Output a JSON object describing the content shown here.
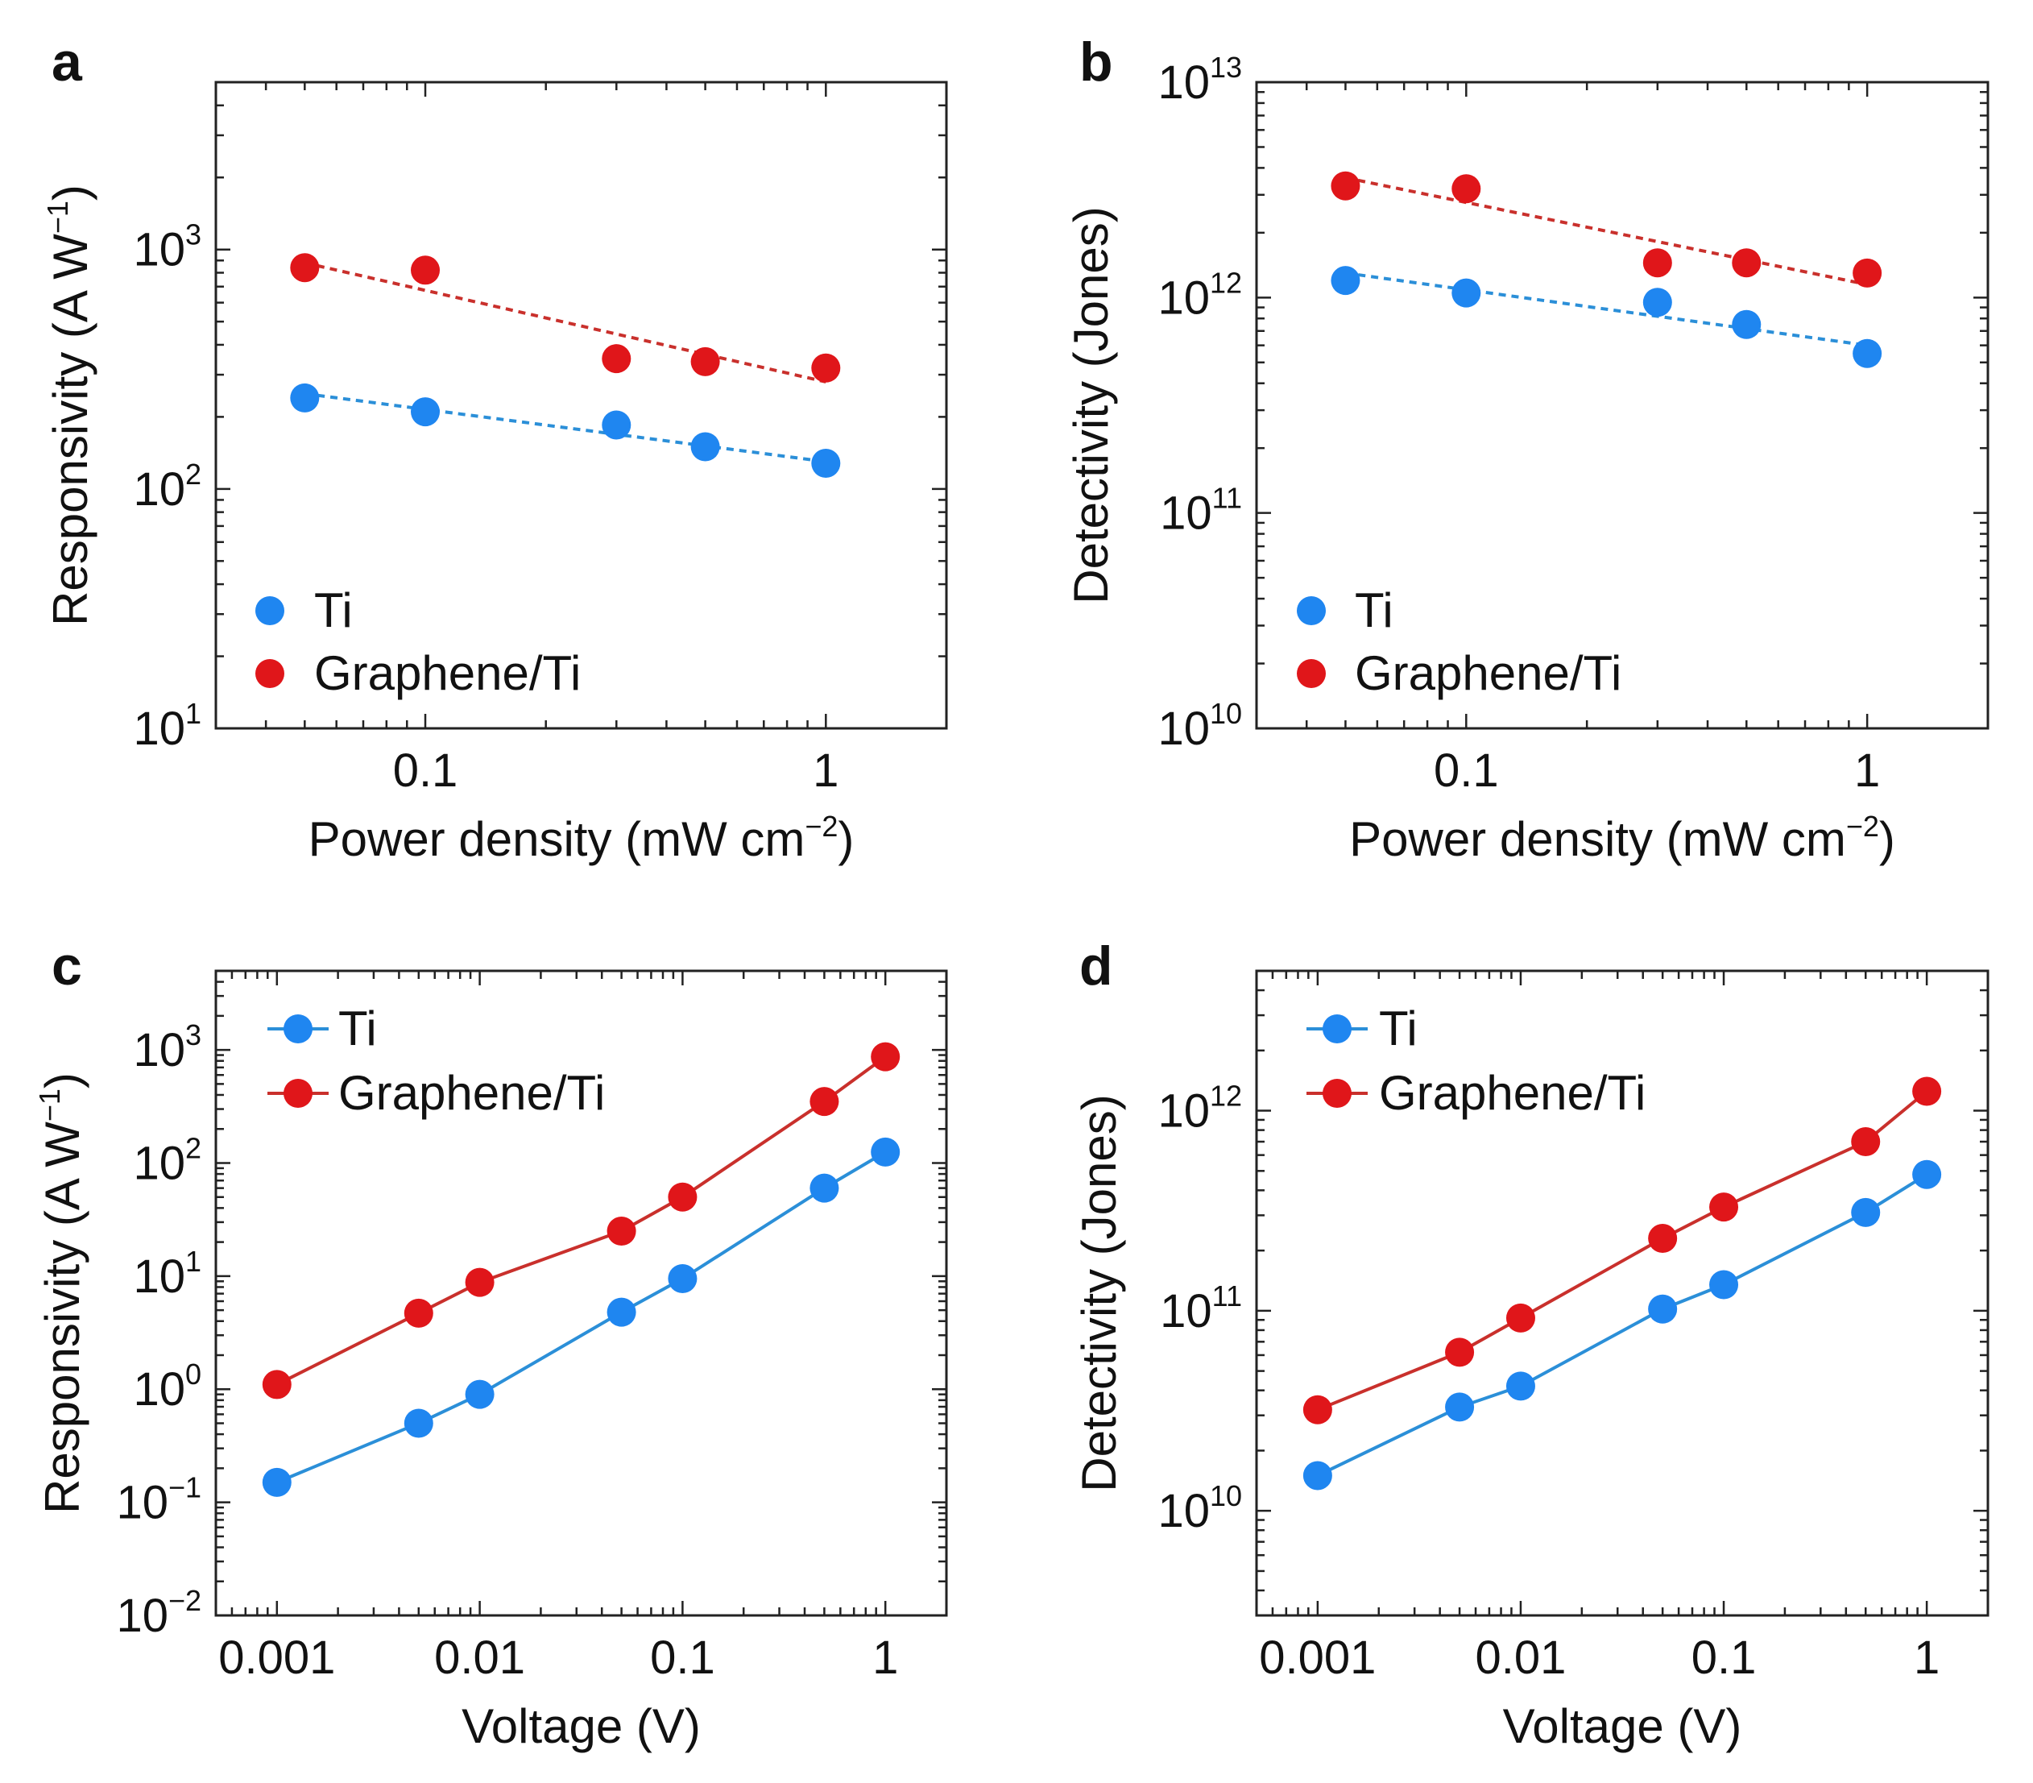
{
  "colors": {
    "ti_marker": "#1f86f0",
    "ti_line": "#2b8fd8",
    "graphene_marker": "#e0161a",
    "graphene_line": "#c9302c",
    "axis": "#222222"
  },
  "chart_data": [
    {
      "id": "a",
      "panel_label": "a",
      "type": "scatter",
      "xscale": "log",
      "yscale": "log",
      "xlim": [
        0.03,
        2
      ],
      "ylim": [
        10,
        5000
      ],
      "xticks": [
        {
          "value": 0.1,
          "label": "0.1"
        },
        {
          "value": 1,
          "label": "1"
        }
      ],
      "yticks": [
        {
          "value": 10,
          "base": "10",
          "exp": "1"
        },
        {
          "value": 100,
          "base": "10",
          "exp": "2"
        },
        {
          "value": 1000,
          "base": "10",
          "exp": "3"
        }
      ],
      "xlabel": {
        "main": "Power density (mW cm",
        "sup": "−2",
        "tail": ")"
      },
      "ylabel": {
        "main": "Responsivity (A W",
        "sup": "−1",
        "tail": ")"
      },
      "legend_position": "bottom-left",
      "legend_style": "marker",
      "connect_points": false,
      "series": [
        {
          "name": "Ti",
          "color_key": "ti",
          "x": [
            0.05,
            0.1,
            0.3,
            0.5,
            1
          ],
          "y": [
            240,
            210,
            185,
            150,
            128
          ],
          "fit": {
            "x": [
              0.05,
              1
            ],
            "y": [
              250,
              130
            ]
          }
        },
        {
          "name": "Graphene/Ti",
          "color_key": "graphene",
          "x": [
            0.05,
            0.1,
            0.3,
            0.5,
            1
          ],
          "y": [
            840,
            820,
            350,
            340,
            320
          ],
          "fit": {
            "x": [
              0.05,
              1
            ],
            "y": [
              880,
              280
            ]
          }
        }
      ]
    },
    {
      "id": "b",
      "panel_label": "b",
      "type": "scatter",
      "xscale": "log",
      "yscale": "log",
      "xlim": [
        0.03,
        2
      ],
      "ylim": [
        10000000000.0,
        10000000000000.0
      ],
      "xticks": [
        {
          "value": 0.1,
          "label": "0.1"
        },
        {
          "value": 1,
          "label": "1"
        }
      ],
      "yticks": [
        {
          "value": 10000000000.0,
          "base": "10",
          "exp": "10"
        },
        {
          "value": 100000000000.0,
          "base": "10",
          "exp": "11"
        },
        {
          "value": 1000000000000.0,
          "base": "10",
          "exp": "12"
        },
        {
          "value": 10000000000000.0,
          "base": "10",
          "exp": "13"
        }
      ],
      "xlabel": {
        "main": "Power density (mW cm",
        "sup": "−2",
        "tail": ")"
      },
      "ylabel": {
        "main": "Detectivity (Jones)",
        "sup": "",
        "tail": ""
      },
      "legend_position": "bottom-left",
      "legend_style": "marker",
      "connect_points": false,
      "series": [
        {
          "name": "Ti",
          "color_key": "ti",
          "x": [
            0.05,
            0.1,
            0.3,
            0.5,
            1
          ],
          "y": [
            1200000000000.0,
            1050000000000.0,
            950000000000.0,
            750000000000.0,
            550000000000.0
          ],
          "fit": {
            "x": [
              0.05,
              1
            ],
            "y": [
              1300000000000.0,
              600000000000.0
            ]
          }
        },
        {
          "name": "Graphene/Ti",
          "color_key": "graphene",
          "x": [
            0.05,
            0.1,
            0.3,
            0.5,
            1
          ],
          "y": [
            3300000000000.0,
            3200000000000.0,
            1450000000000.0,
            1450000000000.0,
            1300000000000.0
          ],
          "fit": {
            "x": [
              0.05,
              1
            ],
            "y": [
              3600000000000.0,
              1150000000000.0
            ]
          }
        }
      ]
    },
    {
      "id": "c",
      "panel_label": "c",
      "type": "line",
      "xscale": "log",
      "yscale": "log",
      "xlim": [
        0.0005,
        2
      ],
      "ylim": [
        0.01,
        5000
      ],
      "xticks": [
        {
          "value": 0.001,
          "label": "0.001"
        },
        {
          "value": 0.01,
          "label": "0.01"
        },
        {
          "value": 0.1,
          "label": "0.1"
        },
        {
          "value": 1,
          "label": "1"
        }
      ],
      "yticks": [
        {
          "value": 0.01,
          "base": "10",
          "exp": "−2"
        },
        {
          "value": 0.1,
          "base": "10",
          "exp": "−1"
        },
        {
          "value": 1,
          "base": "10",
          "exp": "0"
        },
        {
          "value": 10,
          "base": "10",
          "exp": "1"
        },
        {
          "value": 100,
          "base": "10",
          "exp": "2"
        },
        {
          "value": 1000,
          "base": "10",
          "exp": "3"
        }
      ],
      "xlabel": {
        "main": "Voltage (V)",
        "sup": "",
        "tail": ""
      },
      "ylabel": {
        "main": "Responsivity (A W",
        "sup": "−1",
        "tail": ")"
      },
      "legend_position": "top-left",
      "legend_style": "line-marker",
      "connect_points": true,
      "series": [
        {
          "name": "Ti",
          "color_key": "ti",
          "x": [
            0.001,
            0.005,
            0.01,
            0.05,
            0.1,
            0.5,
            1
          ],
          "y": [
            0.15,
            0.5,
            0.9,
            4.8,
            9.5,
            60,
            125
          ]
        },
        {
          "name": "Graphene/Ti",
          "color_key": "graphene",
          "x": [
            0.001,
            0.005,
            0.01,
            0.05,
            0.1,
            0.5,
            1
          ],
          "y": [
            1.1,
            4.7,
            8.8,
            25,
            50,
            350,
            870
          ]
        }
      ]
    },
    {
      "id": "d",
      "panel_label": "d",
      "type": "line",
      "xscale": "log",
      "yscale": "log",
      "xlim": [
        0.0005,
        2
      ],
      "ylim": [
        3000000000.0,
        5000000000000.0
      ],
      "xticks": [
        {
          "value": 0.001,
          "label": "0.001"
        },
        {
          "value": 0.01,
          "label": "0.01"
        },
        {
          "value": 0.1,
          "label": "0.1"
        },
        {
          "value": 1,
          "label": "1"
        }
      ],
      "yticks": [
        {
          "value": 10000000000.0,
          "base": "10",
          "exp": "10"
        },
        {
          "value": 100000000000.0,
          "base": "10",
          "exp": "11"
        },
        {
          "value": 1000000000000.0,
          "base": "10",
          "exp": "12"
        }
      ],
      "xlabel": {
        "main": "Voltage (V)",
        "sup": "",
        "tail": ""
      },
      "ylabel": {
        "main": "Detectivity (Jones)",
        "sup": "",
        "tail": ""
      },
      "legend_position": "top-left",
      "legend_style": "line-marker",
      "connect_points": true,
      "series": [
        {
          "name": "Ti",
          "color_key": "ti",
          "x": [
            0.001,
            0.005,
            0.01,
            0.05,
            0.1,
            0.5,
            1
          ],
          "y": [
            15000000000.0,
            33000000000.0,
            42000000000.0,
            102000000000.0,
            135000000000.0,
            310000000000.0,
            480000000000.0
          ]
        },
        {
          "name": "Graphene/Ti",
          "color_key": "graphene",
          "x": [
            0.001,
            0.005,
            0.01,
            0.05,
            0.1,
            0.5,
            1
          ],
          "y": [
            32000000000.0,
            62000000000.0,
            92000000000.0,
            230000000000.0,
            330000000000.0,
            700000000000.0,
            1250000000000.0
          ]
        }
      ]
    }
  ]
}
